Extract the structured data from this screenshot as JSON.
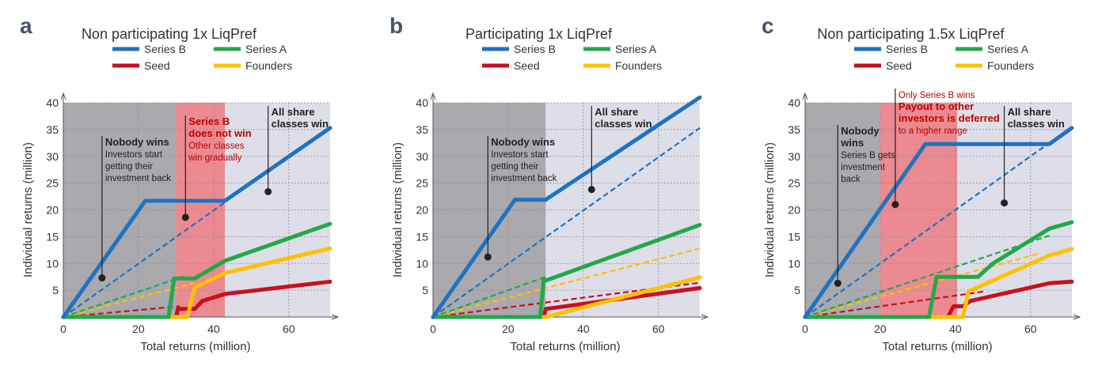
{
  "colors": {
    "series_b": "#1f72c1",
    "series_a": "#22a84a",
    "seed": "#c8101e",
    "founders": "#ffc000",
    "band_dark": "#9a9aa0",
    "band_light": "#d7d8e4",
    "band_red": "#e8757c",
    "panel_letter": "#4a5468",
    "annot_red": "#c00000"
  },
  "chart_data": [
    {
      "type": "line",
      "panel_letter": "a",
      "title": "Non participating 1x LiqPref",
      "xlabel": "Total returns (million)",
      "ylabel": "Individual returns (million)",
      "xlim": [
        0,
        71
      ],
      "ylim": [
        0,
        40
      ],
      "xticks": [
        0,
        20,
        40,
        60
      ],
      "yticks": [
        5,
        10,
        15,
        20,
        25,
        30,
        35,
        40
      ],
      "grid": true,
      "legend": {
        "position": "top",
        "entries": [
          "Series B",
          "Series A",
          "Seed",
          "Founders"
        ]
      },
      "bands": [
        {
          "from": 0,
          "to": 30,
          "shade": "dark"
        },
        {
          "from": 30,
          "to": 43,
          "shade": "red"
        },
        {
          "from": 43,
          "to": 71,
          "shade": "light"
        }
      ],
      "series": [
        {
          "name": "Series B",
          "color_key": "series_b",
          "style": "solid",
          "points": [
            [
              0,
              0
            ],
            [
              21.8,
              21.7
            ],
            [
              43,
              21.7
            ],
            [
              71,
              35.3
            ]
          ]
        },
        {
          "name": "Series A",
          "color_key": "series_a",
          "style": "solid",
          "points": [
            [
              0,
              0
            ],
            [
              28,
              0
            ],
            [
              29.5,
              7.2
            ],
            [
              35,
              7.2
            ],
            [
              43,
              10.5
            ],
            [
              71,
              17.4
            ]
          ]
        },
        {
          "name": "Seed",
          "color_key": "seed",
          "style": "solid",
          "points": [
            [
              0,
              0
            ],
            [
              30,
              0
            ],
            [
              30.5,
              1.5
            ],
            [
              35,
              1.5
            ],
            [
              37,
              3
            ],
            [
              43,
              4.3
            ],
            [
              71,
              6.6
            ]
          ]
        },
        {
          "name": "Founders",
          "color_key": "founders",
          "style": "solid",
          "points": [
            [
              0,
              0
            ],
            [
              33,
              0
            ],
            [
              35,
              5.5
            ],
            [
              43,
              8.2
            ],
            [
              71,
              12.8
            ]
          ]
        },
        {
          "name": "Series B",
          "color_key": "series_b",
          "style": "dashed",
          "points": [
            [
              0,
              0
            ],
            [
              43,
              21.4
            ]
          ]
        },
        {
          "name": "Series A",
          "color_key": "series_a",
          "style": "dashed",
          "points": [
            [
              0,
              0
            ],
            [
              33,
              7.8
            ]
          ]
        },
        {
          "name": "Seed",
          "color_key": "seed",
          "style": "dashed",
          "points": [
            [
              0,
              0
            ],
            [
              31,
              2
            ]
          ]
        },
        {
          "name": "Founders",
          "color_key": "founders",
          "style": "dashed",
          "points": [
            [
              0,
              0
            ],
            [
              36,
              6.5
            ]
          ]
        }
      ],
      "annotations": [
        {
          "x": 10.3,
          "y": 7.3,
          "lines": [
            {
              "text": "Nobody wins",
              "bold": true,
              "red": false
            },
            {
              "text": "Investors start",
              "bold": false,
              "red": false
            },
            {
              "text": "getting their",
              "bold": false,
              "red": false
            },
            {
              "text": "investment back",
              "bold": false,
              "red": false
            }
          ]
        },
        {
          "x": 32.5,
          "y": 18.6,
          "lines": [
            {
              "text": "Series B",
              "bold": true,
              "red": true
            },
            {
              "text": "does not win",
              "bold": true,
              "red": true
            },
            {
              "text": "Other classes",
              "bold": false,
              "red": true
            },
            {
              "text": "win gradually",
              "bold": false,
              "red": true
            }
          ]
        },
        {
          "x": 54.5,
          "y": 23.4,
          "lines": [
            {
              "text": "All share",
              "bold": true,
              "red": false
            },
            {
              "text": "classes win",
              "bold": true,
              "red": false
            }
          ]
        }
      ]
    },
    {
      "type": "line",
      "panel_letter": "b",
      "title": "Participating 1x LiqPref",
      "xlabel": "Total returns (million)",
      "ylabel": "Individual returns (million)",
      "xlim": [
        0,
        71
      ],
      "ylim": [
        0,
        40
      ],
      "xticks": [
        0,
        20,
        40,
        60
      ],
      "yticks": [
        5,
        10,
        15,
        20,
        25,
        30,
        35,
        40
      ],
      "grid": true,
      "legend": {
        "position": "top",
        "entries": [
          "Series B",
          "Series A",
          "Seed",
          "Founders"
        ]
      },
      "bands": [
        {
          "from": 0,
          "to": 30,
          "shade": "dark"
        },
        {
          "from": 30,
          "to": 71,
          "shade": "light"
        }
      ],
      "series": [
        {
          "name": "Series B",
          "color_key": "series_b",
          "style": "solid",
          "points": [
            [
              0,
              0
            ],
            [
              21.8,
              21.9
            ],
            [
              30,
              21.9
            ],
            [
              71,
              41
            ]
          ]
        },
        {
          "name": "Series A",
          "color_key": "series_a",
          "style": "solid",
          "points": [
            [
              0,
              0
            ],
            [
              28.5,
              0
            ],
            [
              29.5,
              7.2
            ],
            [
              30,
              6.8
            ],
            [
              71,
              17.2
            ]
          ]
        },
        {
          "name": "Seed",
          "color_key": "seed",
          "style": "solid",
          "points": [
            [
              0,
              0
            ],
            [
              29.5,
              0
            ],
            [
              30,
              1.5
            ],
            [
              71,
              5.4
            ]
          ]
        },
        {
          "name": "Founders",
          "color_key": "founders",
          "style": "solid",
          "points": [
            [
              0,
              0
            ],
            [
              29,
              0
            ],
            [
              30,
              0
            ],
            [
              71,
              7.4
            ]
          ]
        },
        {
          "name": "Series B",
          "color_key": "series_b",
          "style": "dashed",
          "points": [
            [
              0,
              0
            ],
            [
              71,
              35.3
            ]
          ]
        },
        {
          "name": "Series A",
          "color_key": "series_a",
          "style": "dashed",
          "points": [
            [
              0,
              0
            ],
            [
              30,
              7.5
            ]
          ]
        },
        {
          "name": "Seed",
          "color_key": "seed",
          "style": "dashed",
          "points": [
            [
              0,
              0
            ],
            [
              71,
              6.4
            ]
          ]
        },
        {
          "name": "Founders",
          "color_key": "founders",
          "style": "dashed",
          "points": [
            [
              0,
              0
            ],
            [
              71,
              12.8
            ]
          ]
        }
      ],
      "annotations": [
        {
          "x": 14.6,
          "y": 11.2,
          "lines": [
            {
              "text": "Nobody wins",
              "bold": true,
              "red": false
            },
            {
              "text": "Investors start",
              "bold": false,
              "red": false
            },
            {
              "text": "getting their",
              "bold": false,
              "red": false
            },
            {
              "text": "investment back",
              "bold": false,
              "red": false
            }
          ]
        },
        {
          "x": 42.2,
          "y": 23.8,
          "lines": [
            {
              "text": "All share",
              "bold": true,
              "red": false
            },
            {
              "text": "classes win",
              "bold": true,
              "red": false
            }
          ]
        }
      ]
    },
    {
      "type": "line",
      "panel_letter": "c",
      "title": "Non participating 1.5x LiqPref",
      "xlabel": "Total returns (million)",
      "ylabel": "Individual returns (million)",
      "xlim": [
        0,
        71
      ],
      "ylim": [
        0,
        40
      ],
      "xticks": [
        0,
        20,
        40,
        60
      ],
      "yticks": [
        5,
        10,
        15,
        20,
        25,
        30,
        35,
        40
      ],
      "grid": true,
      "legend": {
        "position": "top",
        "entries": [
          "Series B",
          "Series A",
          "Seed",
          "Founders"
        ]
      },
      "bands": [
        {
          "from": 0,
          "to": 20,
          "shade": "dark"
        },
        {
          "from": 20,
          "to": 40.5,
          "shade": "red"
        },
        {
          "from": 40.5,
          "to": 71,
          "shade": "light"
        }
      ],
      "series": [
        {
          "name": "Series B",
          "color_key": "series_b",
          "style": "solid",
          "points": [
            [
              0,
              0
            ],
            [
              32,
              32.3
            ],
            [
              65,
              32.3
            ],
            [
              71,
              35.3
            ]
          ]
        },
        {
          "name": "Series A",
          "color_key": "series_a",
          "style": "solid",
          "points": [
            [
              0,
              0
            ],
            [
              33,
              0
            ],
            [
              35,
              7.5
            ],
            [
              46,
              7.5
            ],
            [
              50,
              10
            ],
            [
              65,
              16.5
            ],
            [
              71,
              17.7
            ]
          ]
        },
        {
          "name": "Seed",
          "color_key": "seed",
          "style": "solid",
          "points": [
            [
              0,
              0
            ],
            [
              38,
              0
            ],
            [
              39.5,
              2
            ],
            [
              42,
              2
            ],
            [
              44,
              3
            ],
            [
              65,
              6.3
            ],
            [
              71,
              6.6
            ]
          ]
        },
        {
          "name": "Founders",
          "color_key": "founders",
          "style": "solid",
          "points": [
            [
              0,
              0
            ],
            [
              42,
              0
            ],
            [
              43.5,
              4.8
            ],
            [
              65,
              11.5
            ],
            [
              71,
              12.7
            ]
          ]
        },
        {
          "name": "Series B",
          "color_key": "series_b",
          "style": "dashed",
          "points": [
            [
              0,
              0
            ],
            [
              71,
              35.5
            ]
          ]
        },
        {
          "name": "Series A",
          "color_key": "series_a",
          "style": "dashed",
          "points": [
            [
              0,
              0
            ],
            [
              65,
              15.2
            ]
          ]
        },
        {
          "name": "Seed",
          "color_key": "seed",
          "style": "dashed",
          "points": [
            [
              0,
              0
            ],
            [
              48,
              4.8
            ]
          ]
        },
        {
          "name": "Founders",
          "color_key": "founders",
          "style": "dashed",
          "points": [
            [
              0,
              0
            ],
            [
              62,
              11.8
            ]
          ]
        }
      ],
      "annotations": [
        {
          "x": 8.7,
          "y": 6.3,
          "lines": [
            {
              "text": "Nobody",
              "bold": true,
              "red": false
            },
            {
              "text": "wins",
              "bold": true,
              "red": false
            },
            {
              "text": "Series B gets",
              "bold": false,
              "red": false
            },
            {
              "text": "investment",
              "bold": false,
              "red": false
            },
            {
              "text": "back",
              "bold": false,
              "red": false
            }
          ]
        },
        {
          "x": 24,
          "y": 21,
          "lines": [
            {
              "text": "Only Series B wins",
              "bold": false,
              "red": true
            },
            {
              "text": "Payout to other",
              "bold": true,
              "red": true
            },
            {
              "text": "investors is deferred",
              "bold": true,
              "red": true
            },
            {
              "text": "to a higher range",
              "bold": false,
              "red": true
            }
          ]
        },
        {
          "x": 53,
          "y": 21.3,
          "lines": [
            {
              "text": "All share",
              "bold": true,
              "red": false
            },
            {
              "text": "classes win",
              "bold": true,
              "red": false
            }
          ]
        }
      ]
    }
  ]
}
